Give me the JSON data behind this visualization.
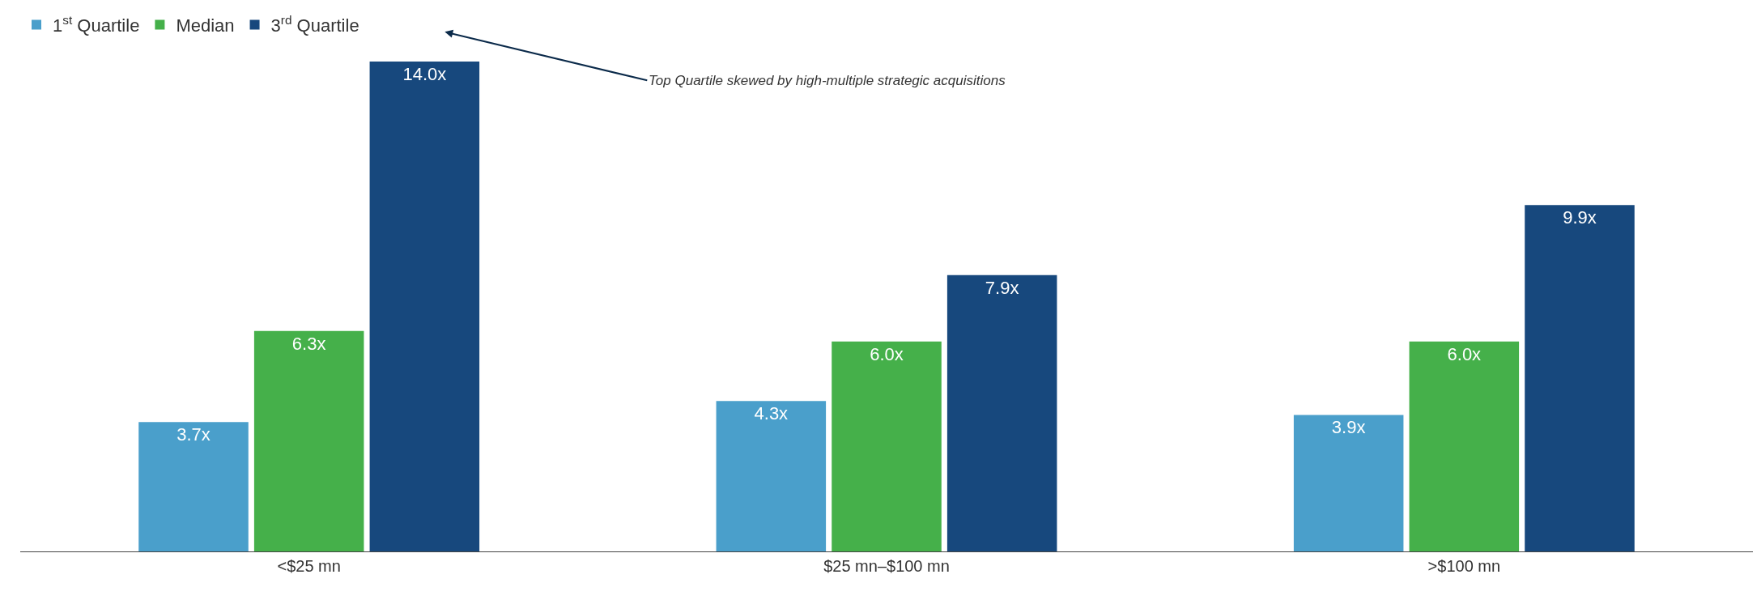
{
  "chart_data": {
    "type": "bar",
    "categories": [
      "<$25 mn",
      "$25 mn–$100 mn",
      ">$100 mn"
    ],
    "series": [
      {
        "name": "1$^{st}$ Quartile",
        "color": "#4a9fcb",
        "values": [
          3.7,
          4.3,
          3.9
        ],
        "value_labels": [
          "3.7x",
          "4.3x",
          "3.9x"
        ]
      },
      {
        "name": "Median",
        "color": "#45b04a",
        "values": [
          6.3,
          6.0,
          6.0
        ],
        "value_labels": [
          "6.3x",
          "6.0x",
          "6.0x"
        ]
      },
      {
        "name": "3$^{rd}$ Quartile",
        "color": "#17487d",
        "values": [
          14.0,
          7.9,
          9.9
        ],
        "value_labels": [
          "14.0x",
          "7.9x",
          "9.9x"
        ]
      }
    ],
    "annotations": [
      "Top Quartile skewed by high-multiple strategic acquisitions"
    ],
    "legend": "top left"
  }
}
